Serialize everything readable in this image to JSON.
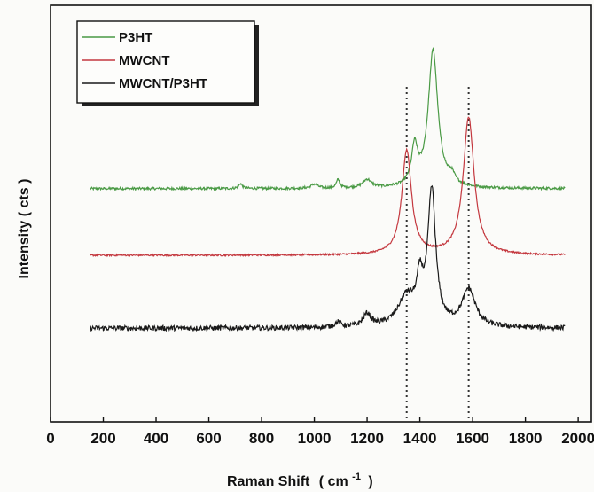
{
  "chart_data": {
    "type": "line",
    "title": "",
    "xlabel": "Raman Shift",
    "xlabel_unit_open": "( cm",
    "xlabel_unit_exp": "-1",
    "xlabel_unit_close": ")",
    "ylabel": "Intensity ( cts )",
    "xlim": [
      0,
      2050
    ],
    "ylim": [
      0,
      1
    ],
    "x_ticks": [
      "0",
      "200",
      "400",
      "600",
      "800",
      "1000",
      "1200",
      "1400",
      "1600",
      "1800",
      "2000"
    ],
    "y_ticks_visible": false,
    "grid": false,
    "legend_position": "top-left",
    "reference_lines_x": [
      1350,
      1585
    ],
    "series": [
      {
        "name": "P3HT",
        "color": "#4a9a45",
        "baseline": 0.56,
        "noise": 0.003,
        "peaks": [
          {
            "x": 720,
            "height": 0.012,
            "width": 8
          },
          {
            "x": 1000,
            "height": 0.01,
            "width": 15
          },
          {
            "x": 1090,
            "height": 0.02,
            "width": 8
          },
          {
            "x": 1200,
            "height": 0.02,
            "width": 20
          },
          {
            "x": 1380,
            "height": 0.09,
            "width": 14
          },
          {
            "x": 1450,
            "height": 0.33,
            "width": 22
          },
          {
            "x": 1520,
            "height": 0.02,
            "width": 15
          }
        ]
      },
      {
        "name": "MWCNT",
        "color": "#c4383f",
        "baseline": 0.4,
        "noise": 0.002,
        "peaks": [
          {
            "x": 1350,
            "height": 0.25,
            "width": 22
          },
          {
            "x": 1585,
            "height": 0.33,
            "width": 25
          }
        ]
      },
      {
        "name": "MWCNT/P3HT",
        "color": "#1a1a1a",
        "baseline": 0.225,
        "noise": 0.006,
        "peaks": [
          {
            "x": 1090,
            "height": 0.012,
            "width": 15
          },
          {
            "x": 1200,
            "height": 0.03,
            "width": 18
          },
          {
            "x": 1350,
            "height": 0.07,
            "width": 40
          },
          {
            "x": 1400,
            "height": 0.09,
            "width": 14
          },
          {
            "x": 1445,
            "height": 0.32,
            "width": 18
          },
          {
            "x": 1585,
            "height": 0.09,
            "width": 30
          }
        ],
        "x_range": [
          150,
          1950
        ]
      }
    ]
  }
}
